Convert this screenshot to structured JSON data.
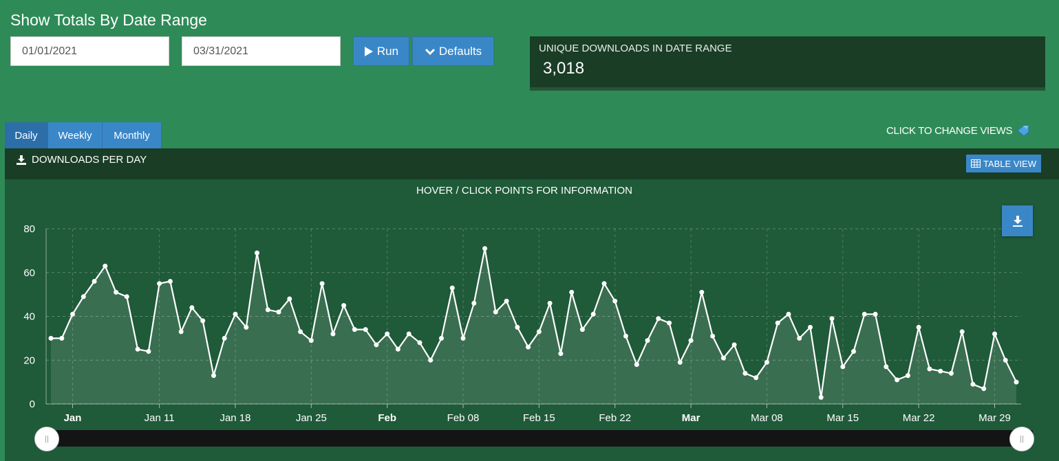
{
  "page": {
    "title": "Show Totals By Date Range"
  },
  "filters": {
    "start_date": "01/01/2021",
    "end_date": "03/31/2021"
  },
  "buttons": {
    "run": "Run",
    "defaults": "Defaults"
  },
  "stat": {
    "label": "UNIQUE DOWNLOADS IN DATE RANGE",
    "value": "3,018"
  },
  "tabs": [
    {
      "label": "Daily",
      "active": true
    },
    {
      "label": "Weekly",
      "active": false
    },
    {
      "label": "Monthly",
      "active": false
    }
  ],
  "change_views": {
    "label": "CLICK TO CHANGE VIEWS"
  },
  "panel": {
    "title": "DOWNLOADS PER DAY",
    "table_view": "TABLE VIEW",
    "subtitle": "HOVER / CLICK POINTS FOR INFORMATION"
  },
  "icons": {
    "run": "play-icon",
    "defaults": "chevron-down-icon",
    "panel": "download-icon",
    "table_view": "table-icon",
    "export": "download-icon",
    "change_views": "pointer-icon"
  },
  "colors": {
    "background": "#2e8b57",
    "dark_panel": "#1a3d26",
    "chart_bg": "#1f5a39",
    "accent": "#3a87c8",
    "line": "#ffffff"
  },
  "chart_data": {
    "type": "area",
    "title": "HOVER / CLICK POINTS FOR INFORMATION",
    "ylim": [
      0,
      80
    ],
    "yticks": [
      0,
      20,
      40,
      60,
      80
    ],
    "grid": true,
    "x_start": "2021-01-01",
    "x_end": "2021-03-31",
    "xticks": [
      {
        "label": "Jan",
        "date": "2021-01-03",
        "bold": true
      },
      {
        "label": "Jan 11",
        "date": "2021-01-11",
        "bold": false
      },
      {
        "label": "Jan 18",
        "date": "2021-01-18",
        "bold": false
      },
      {
        "label": "Jan 25",
        "date": "2021-01-25",
        "bold": false
      },
      {
        "label": "Feb",
        "date": "2021-02-01",
        "bold": true
      },
      {
        "label": "Feb 08",
        "date": "2021-02-08",
        "bold": false
      },
      {
        "label": "Feb 15",
        "date": "2021-02-15",
        "bold": false
      },
      {
        "label": "Feb 22",
        "date": "2021-02-22",
        "bold": false
      },
      {
        "label": "Mar",
        "date": "2021-03-01",
        "bold": true
      },
      {
        "label": "Mar 08",
        "date": "2021-03-08",
        "bold": false
      },
      {
        "label": "Mar 15",
        "date": "2021-03-15",
        "bold": false
      },
      {
        "label": "Mar 22",
        "date": "2021-03-22",
        "bold": false
      },
      {
        "label": "Mar 29",
        "date": "2021-03-29",
        "bold": false
      }
    ],
    "series": [
      {
        "values": [
          30,
          30,
          41,
          49,
          56,
          63,
          51,
          49,
          25,
          24,
          55,
          56,
          33,
          44,
          38,
          13,
          30,
          41,
          35,
          69,
          43,
          42,
          48,
          33,
          29,
          55,
          32,
          45,
          34,
          34,
          27,
          32,
          25,
          32,
          28,
          20,
          30,
          53,
          30,
          46,
          71,
          42,
          47,
          35,
          26,
          33,
          46,
          23,
          51,
          34,
          41,
          55,
          47,
          31,
          18,
          29,
          39,
          37,
          19,
          29,
          51,
          31,
          21,
          27,
          14,
          12,
          19,
          37,
          41,
          30,
          35,
          3,
          39,
          17,
          24,
          41,
          41,
          17,
          11,
          13,
          35,
          16,
          15,
          14,
          33,
          9,
          7,
          32,
          20,
          10
        ]
      }
    ]
  }
}
